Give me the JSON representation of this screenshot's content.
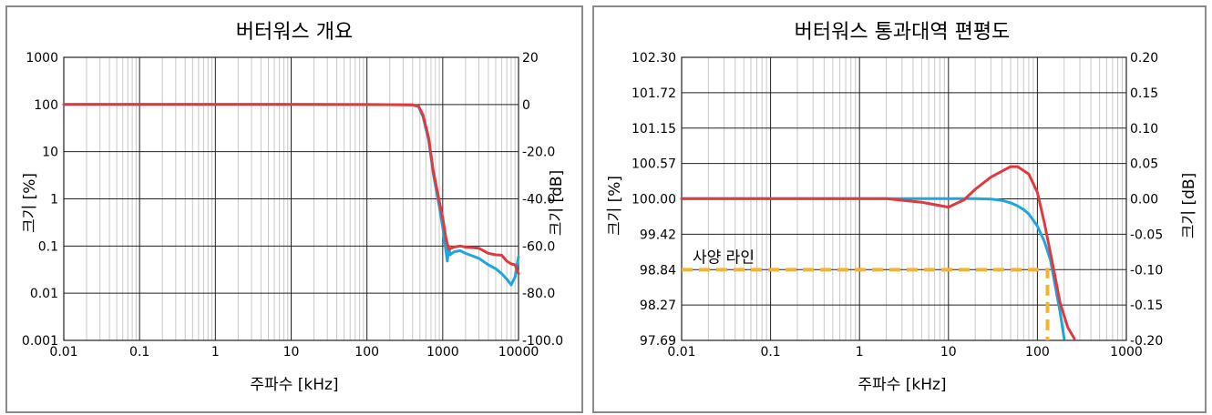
{
  "chart_data": [
    {
      "type": "line",
      "title": "버터워스 개요",
      "xlabel": "주파수 [kHz]",
      "ylabel": "크기 [%]",
      "y2label": "크기 [dB]",
      "xscale": "log",
      "yscale": "log",
      "xlim": [
        0.01,
        10000
      ],
      "ylim": [
        0.001,
        1000
      ],
      "y2lim": [
        -100,
        20
      ],
      "grid": true,
      "x_ticks": [
        "0.01",
        "0.1",
        "1",
        "10",
        "100",
        "1000",
        "10000"
      ],
      "y_ticks": [
        "0.001",
        "0.01",
        "0.1",
        "1",
        "10",
        "100",
        "1000"
      ],
      "y2_ticks": [
        "-100.0",
        "-80.0",
        "-60.0",
        "-40.0",
        "-20.0",
        "0",
        "20"
      ],
      "series": [
        {
          "color": "#e03a3e",
          "x": [
            0.01,
            0.1,
            1,
            10,
            100,
            300,
            400,
            480,
            550,
            650,
            750,
            900,
            1000,
            1100,
            1200,
            1400,
            1700,
            2000,
            3000,
            4000,
            5000,
            6000,
            7000,
            8000,
            9000,
            10000
          ],
          "y": [
            100,
            100,
            100,
            100,
            99.5,
            99,
            98,
            92,
            60,
            20,
            4,
            0.9,
            0.4,
            0.15,
            0.085,
            0.095,
            0.1,
            0.095,
            0.09,
            0.07,
            0.065,
            0.064,
            0.048,
            0.042,
            0.04,
            0.026
          ]
        },
        {
          "color": "#1fa6dd",
          "x": [
            0.01,
            0.1,
            1,
            10,
            100,
            300,
            400,
            480,
            550,
            650,
            750,
            900,
            1000,
            1100,
            1150,
            1200,
            1250,
            1400,
            1700,
            2000,
            3000,
            4000,
            5000,
            6000,
            7000,
            8000,
            9000,
            10000
          ],
          "y": [
            100,
            100,
            100,
            100,
            99.5,
            99,
            98,
            90,
            55,
            18,
            3.5,
            0.7,
            0.25,
            0.08,
            0.048,
            0.1,
            0.065,
            0.075,
            0.08,
            0.07,
            0.055,
            0.04,
            0.033,
            0.026,
            0.02,
            0.015,
            0.022,
            0.06
          ]
        }
      ]
    },
    {
      "type": "line",
      "title": "버터워스 통과대역 편평도",
      "xlabel": "주파수 [kHz]",
      "ylabel": "크기 [%]",
      "y2label": "크기 [dB]",
      "xscale": "log",
      "xlim": [
        0.01,
        1000
      ],
      "ylim": [
        97.69,
        102.3
      ],
      "y2lim": [
        -0.2,
        0.2
      ],
      "grid": true,
      "x_ticks": [
        "0.01",
        "0.1",
        "1",
        "10",
        "100",
        "1000"
      ],
      "y_ticks": [
        "97.69",
        "98.27",
        "98.84",
        "99.42",
        "100.00",
        "100.57",
        "101.15",
        "101.72",
        "102.30"
      ],
      "y2_ticks": [
        "-0.20",
        "-0.15",
        "-0.10",
        "-0.05",
        "0.00",
        "0.05",
        "0.10",
        "0.15",
        "0.20"
      ],
      "spec_line": {
        "label": "사양 라인",
        "y": 98.84,
        "x_end": 130,
        "color": "#f2b531"
      },
      "series": [
        {
          "color": "#e03a3e",
          "x": [
            0.01,
            0.1,
            1,
            2,
            5,
            10,
            15,
            20,
            30,
            50,
            60,
            80,
            100,
            120,
            150,
            180,
            220,
            260
          ],
          "y": [
            100,
            100,
            100,
            100,
            99.94,
            99.86,
            99.98,
            100.15,
            100.35,
            100.52,
            100.52,
            100.4,
            100.1,
            99.6,
            98.9,
            98.3,
            97.9,
            97.72
          ]
        },
        {
          "color": "#1fa6dd",
          "x": [
            0.01,
            0.1,
            1,
            2,
            5,
            10,
            20,
            30,
            40,
            50,
            60,
            70,
            80,
            100,
            120,
            140,
            160,
            180,
            200
          ],
          "y": [
            100,
            100,
            100,
            100,
            100,
            100,
            100,
            99.99,
            99.97,
            99.93,
            99.88,
            99.82,
            99.75,
            99.55,
            99.3,
            99,
            98.55,
            98.15,
            97.72
          ]
        }
      ]
    }
  ]
}
